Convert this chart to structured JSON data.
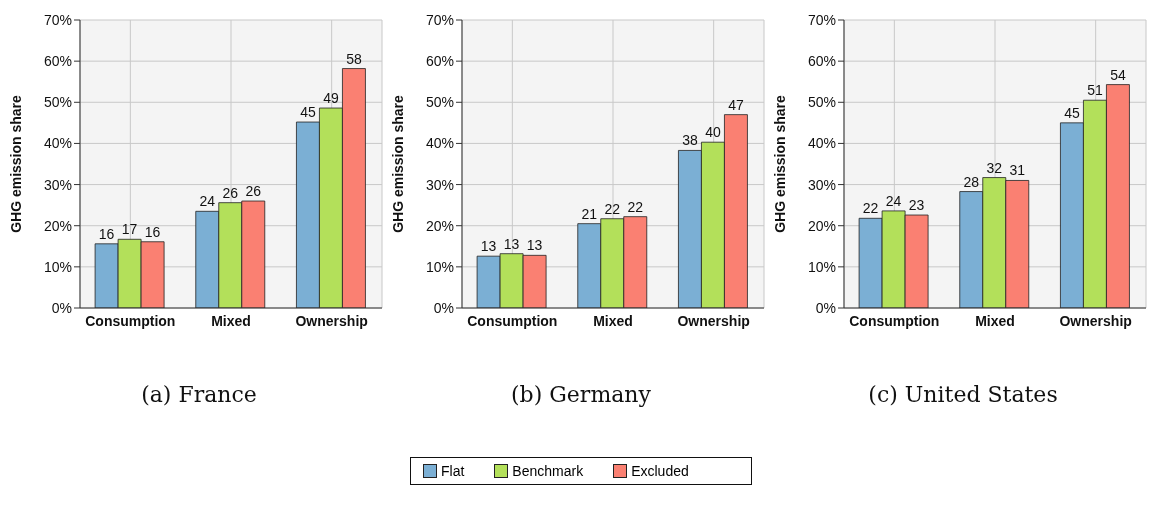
{
  "chart_data": [
    {
      "type": "bar",
      "title": "(a) France",
      "ylabel": "GHG emission share",
      "categories": [
        "Consumption",
        "Mixed",
        "Ownership"
      ],
      "ylim": [
        0,
        70
      ],
      "yticks": [
        {
          "value": 0,
          "label": "0%"
        },
        {
          "value": 10,
          "label": "10%"
        },
        {
          "value": 20,
          "label": "20%"
        },
        {
          "value": 30,
          "label": "30%"
        },
        {
          "value": 40,
          "label": "40%"
        },
        {
          "value": 50,
          "label": "50%"
        },
        {
          "value": 60,
          "label": "60%"
        },
        {
          "value": 70,
          "label": "70%"
        }
      ],
      "grid": true,
      "legend": "bottom",
      "series": [
        {
          "name": "Flat",
          "color": "#7bafd4",
          "values": [
            15.6,
            23.5,
            45.2
          ],
          "value_labels": [
            "16",
            "24",
            "45"
          ]
        },
        {
          "name": "Benchmark",
          "color": "#b3e05a",
          "values": [
            16.7,
            25.6,
            48.6
          ],
          "value_labels": [
            "17",
            "26",
            "49"
          ]
        },
        {
          "name": "Excluded",
          "color": "#fa8072",
          "values": [
            16.1,
            26.0,
            58.2
          ],
          "value_labels": [
            "16",
            "26",
            "58"
          ]
        }
      ]
    },
    {
      "type": "bar",
      "title": "(b) Germany",
      "ylabel": "GHG emission share",
      "categories": [
        "Consumption",
        "Mixed",
        "Ownership"
      ],
      "ylim": [
        0,
        70
      ],
      "yticks": [
        {
          "value": 0,
          "label": "0%"
        },
        {
          "value": 10,
          "label": "10%"
        },
        {
          "value": 20,
          "label": "20%"
        },
        {
          "value": 30,
          "label": "30%"
        },
        {
          "value": 40,
          "label": "40%"
        },
        {
          "value": 50,
          "label": "50%"
        },
        {
          "value": 60,
          "label": "60%"
        },
        {
          "value": 70,
          "label": "70%"
        }
      ],
      "grid": true,
      "series": [
        {
          "color": "#7bafd4",
          "values": [
            12.6,
            20.5,
            38.3
          ],
          "value_labels": [
            "13",
            "21",
            "38"
          ]
        },
        {
          "color": "#b3e05a",
          "values": [
            13.2,
            21.7,
            40.3
          ],
          "value_labels": [
            "13",
            "22",
            "40"
          ]
        },
        {
          "color": "#fa8072",
          "values": [
            12.8,
            22.2,
            47.0
          ],
          "value_labels": [
            "13",
            "22",
            "47"
          ]
        }
      ]
    },
    {
      "type": "bar",
      "title": "(c) United States",
      "ylabel": "GHG emission share",
      "categories": [
        "Consumption",
        "Mixed",
        "Ownership"
      ],
      "ylim": [
        0,
        70
      ],
      "yticks": [
        {
          "value": 0,
          "label": "0%"
        },
        {
          "value": 10,
          "label": "10%"
        },
        {
          "value": 20,
          "label": "20%"
        },
        {
          "value": 30,
          "label": "30%"
        },
        {
          "value": 40,
          "label": "40%"
        },
        {
          "value": 50,
          "label": "50%"
        },
        {
          "value": 60,
          "label": "60%"
        },
        {
          "value": 70,
          "label": "70%"
        }
      ],
      "grid": true,
      "series": [
        {
          "color": "#7bafd4",
          "values": [
            21.8,
            28.3,
            45.0
          ],
          "value_labels": [
            "22",
            "28",
            "45"
          ]
        },
        {
          "color": "#b3e05a",
          "values": [
            23.6,
            31.7,
            50.5
          ],
          "value_labels": [
            "24",
            "32",
            "51"
          ]
        },
        {
          "color": "#fa8072",
          "values": [
            22.6,
            31.0,
            54.3
          ],
          "value_labels": [
            "23",
            "31",
            "54"
          ]
        }
      ]
    }
  ]
}
